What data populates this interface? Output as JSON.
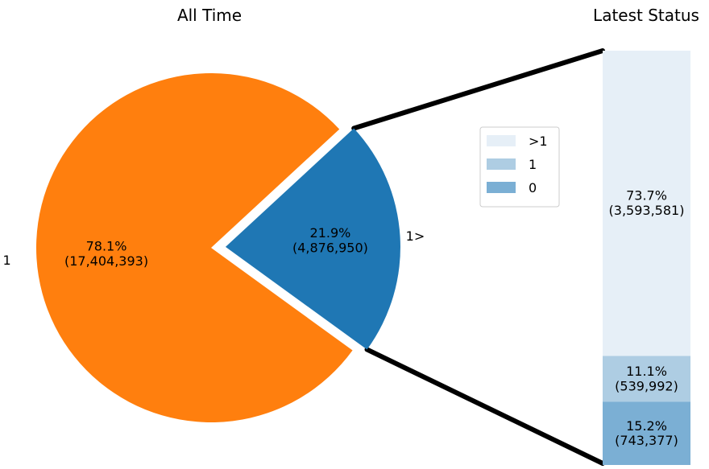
{
  "chart_data": [
    {
      "type": "pie",
      "title": "All Time",
      "start_angle_deg": -36,
      "slices": [
        {
          "label": "1>",
          "value": 4876950,
          "percent": "21.9%",
          "count": "(4,876,950)",
          "color": "#1f77b4",
          "exploded": true
        },
        {
          "label": "1",
          "value": 17404393,
          "percent": "78.1%",
          "count": "(17,404,393)",
          "color": "#ff7f0e",
          "exploded": false
        }
      ]
    },
    {
      "type": "bar",
      "stacked": true,
      "title": "Latest Status",
      "legend_position": "upper-left",
      "series": [
        {
          "name": "0",
          "value": 743377,
          "percent": "15.2%",
          "count": "(743,377)",
          "color": "#7bafd4"
        },
        {
          "name": "1",
          "value": 539992,
          "percent": "11.1%",
          "count": "(539,992)",
          "color": "#aecde3"
        },
        {
          "name": ">1",
          "value": 3593581,
          "percent": "73.7%",
          "count": "(3,593,581)",
          "color": "#e6eff7"
        }
      ]
    }
  ]
}
